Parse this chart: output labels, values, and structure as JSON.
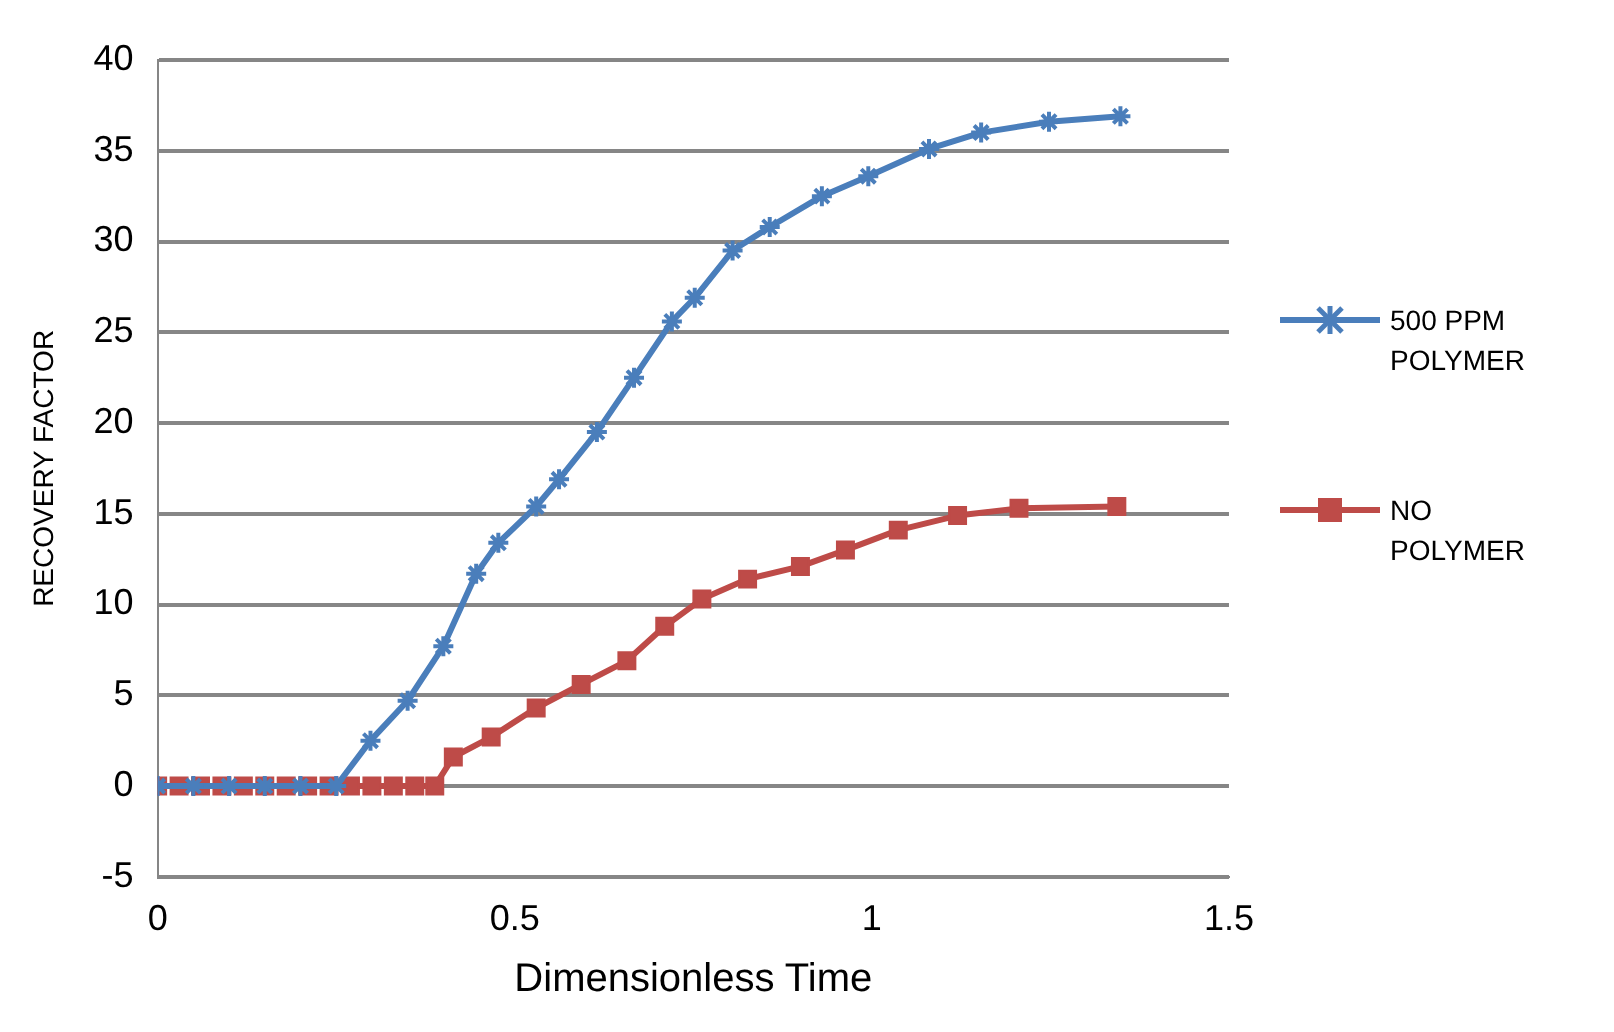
{
  "chart_data": {
    "type": "line",
    "xlabel": "Dimensionless Time",
    "ylabel": "RECOVERY FACTOR",
    "xlim": [
      0,
      1.5
    ],
    "xticks": [
      0,
      0.5,
      1,
      1.5
    ],
    "ylim": [
      -5,
      40
    ],
    "yticks": [
      -5,
      0,
      5,
      10,
      15,
      20,
      25,
      30,
      35,
      40
    ],
    "grid": "y",
    "legend": "right",
    "line_style": "solid",
    "series": [
      {
        "name": "500 PPM POLYMER",
        "color": "#4a7ebb",
        "marker": "cross",
        "x": [
          0,
          0.05,
          0.1,
          0.15,
          0.2,
          0.25,
          0.298,
          0.35,
          0.4,
          0.446,
          0.477,
          0.53,
          0.562,
          0.615,
          0.667,
          0.72,
          0.752,
          0.805,
          0.857,
          0.93,
          0.995,
          1.08,
          1.153,
          1.248,
          1.348
        ],
        "values": [
          0,
          0,
          0,
          0,
          0,
          0,
          2.5,
          4.7,
          7.7,
          11.7,
          13.4,
          15.4,
          16.9,
          19.5,
          22.5,
          25.6,
          26.9,
          29.5,
          30.8,
          32.5,
          33.6,
          35.1,
          36,
          36.6,
          36.9
        ]
      },
      {
        "name": "NO POLYMER",
        "color": "#be4b48",
        "marker": "square",
        "x": [
          0,
          0.03,
          0.06,
          0.09,
          0.12,
          0.15,
          0.18,
          0.21,
          0.24,
          0.27,
          0.3,
          0.33,
          0.36,
          0.388,
          0.414,
          0.467,
          0.53,
          0.593,
          0.657,
          0.71,
          0.762,
          0.826,
          0.9,
          0.963,
          1.037,
          1.12,
          1.206,
          1.343
        ],
        "values": [
          0,
          0,
          0,
          0,
          0,
          0,
          0,
          0,
          0,
          0,
          0,
          0,
          0,
          0,
          1.6,
          2.7,
          4.3,
          5.6,
          6.9,
          8.8,
          10.3,
          11.4,
          12.1,
          13,
          14.1,
          14.9,
          15.3,
          15.4
        ]
      }
    ]
  }
}
